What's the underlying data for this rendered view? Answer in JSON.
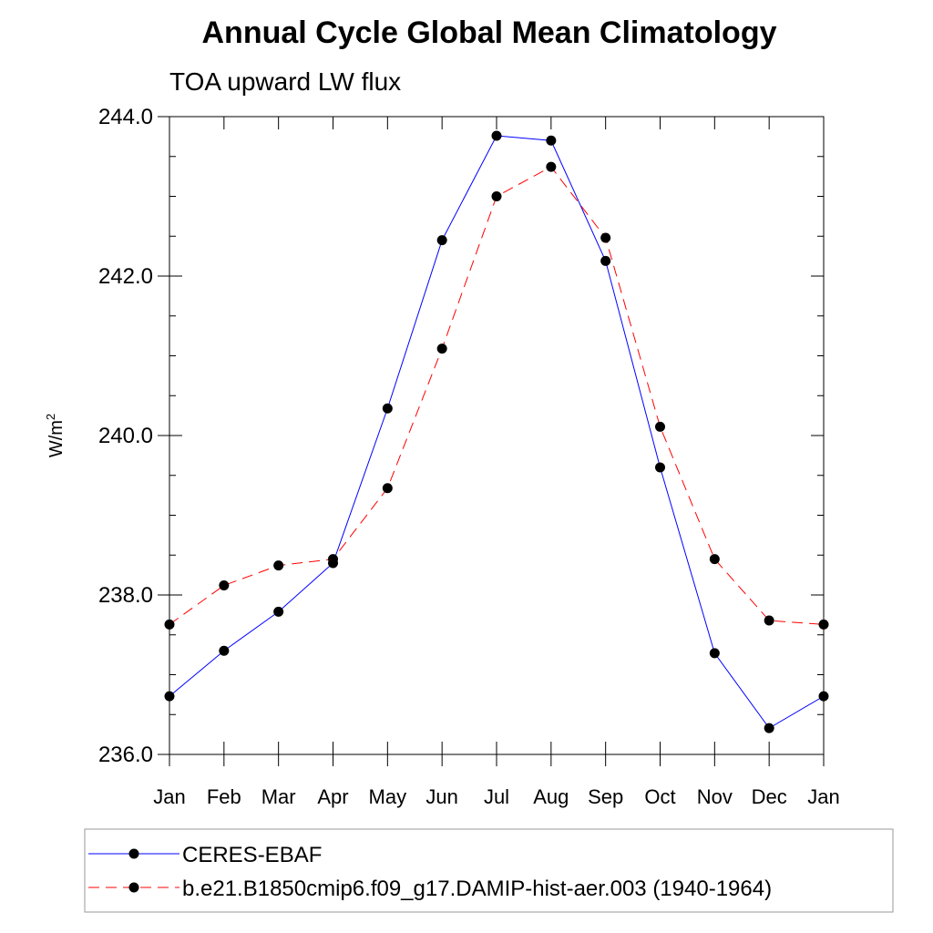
{
  "chart_data": {
    "type": "line",
    "title": "Annual Cycle Global Mean Climatology",
    "subtitle": "TOA upward LW flux",
    "ylabel": "W/m",
    "ylabel_superscript": "2",
    "xlabel": "",
    "categories": [
      "Jan",
      "Feb",
      "Mar",
      "Apr",
      "May",
      "Jun",
      "Jul",
      "Aug",
      "Sep",
      "Oct",
      "Nov",
      "Dec",
      "Jan"
    ],
    "ylim": [
      236.0,
      244.0
    ],
    "yticks": [
      236.0,
      238.0,
      240.0,
      242.0,
      244.0
    ],
    "ytick_labels": [
      "236.0",
      "238.0",
      "240.0",
      "242.0",
      "244.0"
    ],
    "yminor_step": 0.5,
    "series": [
      {
        "name": "CERES-EBAF",
        "color": "#0000ff",
        "dash": "solid",
        "marker": "circle",
        "values": [
          236.73,
          237.3,
          237.79,
          238.4,
          240.34,
          242.45,
          243.76,
          243.7,
          242.19,
          239.6,
          237.27,
          236.33,
          236.73
        ]
      },
      {
        "name": "b.e21.B1850cmip6.f09_g17.DAMIP-hist-aer.003 (1940-1964)",
        "color": "#ff0000",
        "dash": "dashed",
        "marker": "circle",
        "values": [
          237.63,
          238.12,
          238.37,
          238.45,
          239.34,
          241.09,
          243.0,
          243.37,
          242.48,
          240.11,
          238.45,
          237.68,
          237.63
        ]
      }
    ],
    "legend_position": "bottom"
  }
}
